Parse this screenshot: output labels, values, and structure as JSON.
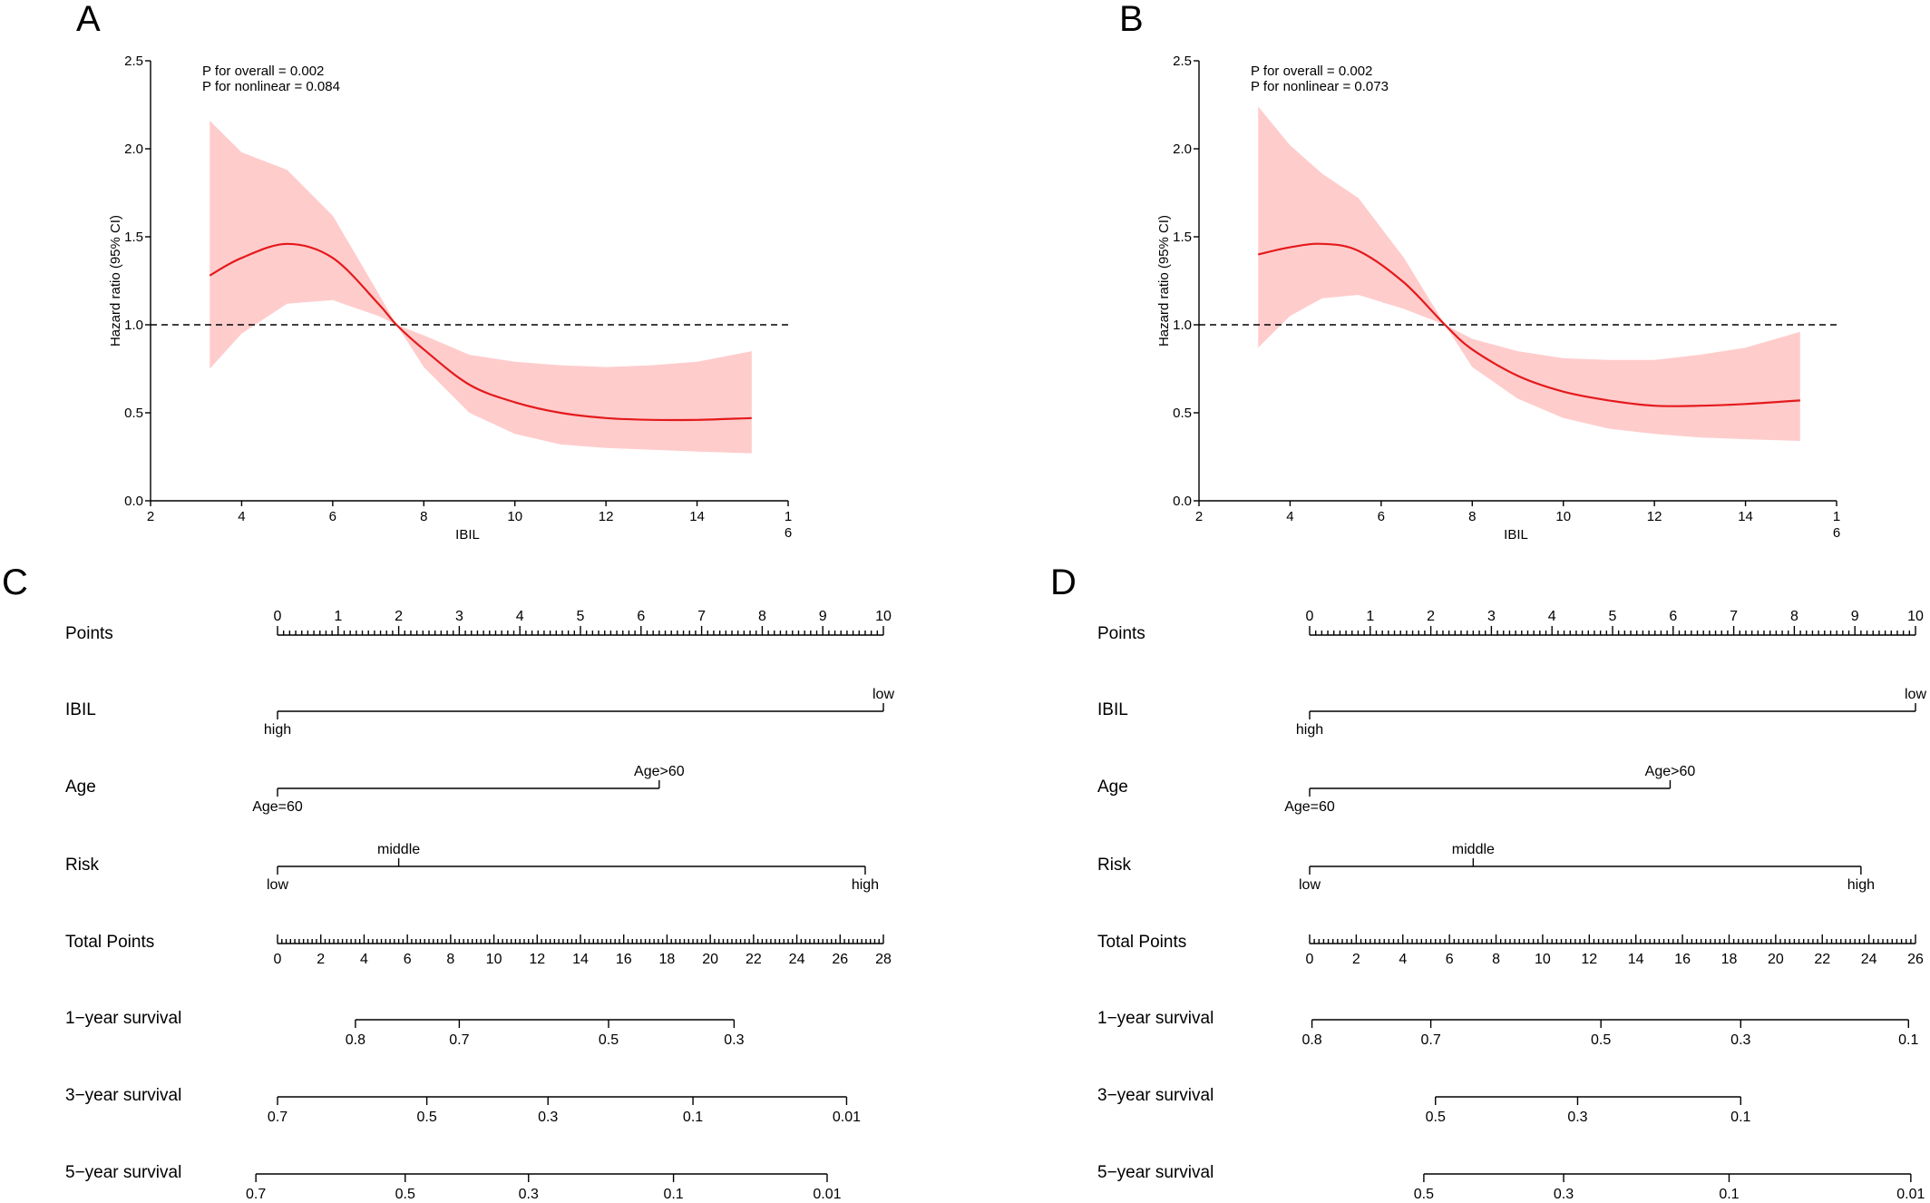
{
  "colors": {
    "curve": "#e41a1c",
    "ci_band": "#ffcccc",
    "axis": "#000000",
    "ref_line": "#000000"
  },
  "chart_data": [
    {
      "panel": "A",
      "type": "line",
      "xlabel": "IBIL",
      "ylabel": "Hazard ratio (95% CI)",
      "xlim": [
        2,
        16
      ],
      "ylim": [
        0,
        2.5
      ],
      "x_ticks": [
        "2",
        "4",
        "6",
        "8",
        "10",
        "12",
        "14",
        "1\n6"
      ],
      "y_ticks": [
        "0.0",
        "0.5",
        "1.0",
        "1.5",
        "2.0",
        "2.5"
      ],
      "annotations": [
        "P for overall = 0.002",
        "P for nonlinear = 0.084"
      ],
      "reference_line": 1.0,
      "x": [
        3.3,
        4.0,
        5.0,
        6.0,
        7.0,
        7.4,
        8.0,
        9.0,
        10.0,
        11.0,
        12.0,
        13.0,
        14.0,
        15.2
      ],
      "hr": [
        1.28,
        1.38,
        1.46,
        1.38,
        1.12,
        1.0,
        0.86,
        0.66,
        0.56,
        0.5,
        0.47,
        0.46,
        0.46,
        0.47
      ],
      "lower": [
        0.75,
        0.95,
        1.12,
        1.14,
        1.05,
        1.0,
        0.76,
        0.5,
        0.38,
        0.32,
        0.3,
        0.29,
        0.28,
        0.27
      ],
      "upper": [
        2.16,
        1.98,
        1.88,
        1.62,
        1.18,
        1.0,
        0.94,
        0.83,
        0.79,
        0.77,
        0.76,
        0.77,
        0.79,
        0.85
      ]
    },
    {
      "panel": "B",
      "type": "line",
      "xlabel": "IBIL",
      "ylabel": "Hazard ratio (95% CI)",
      "xlim": [
        2,
        16
      ],
      "ylim": [
        0,
        2.5
      ],
      "x_ticks": [
        "2",
        "4",
        "6",
        "8",
        "10",
        "12",
        "14",
        "1\n6"
      ],
      "y_ticks": [
        "0.0",
        "0.5",
        "1.0",
        "1.5",
        "2.0",
        "2.5"
      ],
      "annotations": [
        "P for overall = 0.002",
        "P for nonlinear = 0.073"
      ],
      "reference_line": 1.0,
      "x": [
        3.3,
        4.0,
        4.7,
        5.5,
        6.5,
        7.4,
        8.0,
        9.0,
        10.0,
        11.0,
        12.0,
        13.0,
        14.0,
        15.2
      ],
      "hr": [
        1.4,
        1.44,
        1.46,
        1.42,
        1.24,
        1.0,
        0.86,
        0.71,
        0.62,
        0.57,
        0.54,
        0.54,
        0.55,
        0.57
      ],
      "lower": [
        0.87,
        1.05,
        1.15,
        1.17,
        1.09,
        1.0,
        0.76,
        0.58,
        0.47,
        0.41,
        0.38,
        0.36,
        0.35,
        0.34
      ],
      "upper": [
        2.24,
        2.02,
        1.86,
        1.72,
        1.38,
        1.0,
        0.92,
        0.85,
        0.81,
        0.8,
        0.8,
        0.83,
        0.87,
        0.96
      ]
    },
    {
      "panel": "C",
      "type": "nomogram",
      "rows": [
        {
          "label": "Points",
          "kind": "points",
          "scale": [
            0,
            10
          ],
          "ticks": [
            "0",
            "1",
            "2",
            "3",
            "4",
            "5",
            "6",
            "7",
            "8",
            "9",
            "10"
          ]
        },
        {
          "label": "IBIL",
          "kind": "var",
          "levels": [
            {
              "text": "high",
              "points": 0,
              "pos": "below"
            },
            {
              "text": "low",
              "points": 10,
              "pos": "above"
            }
          ]
        },
        {
          "label": "Age",
          "kind": "var",
          "levels": [
            {
              "text": "Age=60",
              "points": 0,
              "pos": "below"
            },
            {
              "text": "Age>60",
              "points": 6.3,
              "pos": "above"
            }
          ]
        },
        {
          "label": "Risk",
          "kind": "var",
          "levels": [
            {
              "text": "low",
              "points": 0,
              "pos": "below"
            },
            {
              "text": "middle",
              "points": 2.0,
              "pos": "above"
            },
            {
              "text": "high",
              "points": 9.7,
              "pos": "below"
            }
          ]
        },
        {
          "label": "Total Points",
          "kind": "total",
          "scale": [
            0,
            28
          ],
          "ticks": [
            "0",
            "2",
            "4",
            "6",
            "8",
            "10",
            "12",
            "14",
            "16",
            "18",
            "20",
            "22",
            "24",
            "26",
            "28"
          ]
        },
        {
          "label": "1−year survival",
          "kind": "surv",
          "ticks": [
            {
              "text": "0.8",
              "total": 3.6
            },
            {
              "text": "0.7",
              "total": 8.4
            },
            {
              "text": "0.5",
              "total": 15.3
            },
            {
              "text": "0.3",
              "total": 21.1
            }
          ]
        },
        {
          "label": "3−year survival",
          "kind": "surv",
          "ticks": [
            {
              "text": "0.7",
              "total": 0
            },
            {
              "text": "0.5",
              "total": 6.9
            },
            {
              "text": "0.3",
              "total": 12.5
            },
            {
              "text": "0.1",
              "total": 19.2
            },
            {
              "text": "0.01",
              "total": 26.3
            }
          ]
        },
        {
          "label": "5−year survival",
          "kind": "surv",
          "ticks": [
            {
              "text": "0.7",
              "total": -1.0
            },
            {
              "text": "0.5",
              "total": 5.9
            },
            {
              "text": "0.3",
              "total": 11.6
            },
            {
              "text": "0.1",
              "total": 18.3
            },
            {
              "text": "0.01",
              "total": 25.4
            }
          ]
        }
      ]
    },
    {
      "panel": "D",
      "type": "nomogram",
      "rows": [
        {
          "label": "Points",
          "kind": "points",
          "scale": [
            0,
            10
          ],
          "ticks": [
            "0",
            "1",
            "2",
            "3",
            "4",
            "5",
            "6",
            "7",
            "8",
            "9",
            "10"
          ]
        },
        {
          "label": "IBIL",
          "kind": "var",
          "levels": [
            {
              "text": "high",
              "points": 0,
              "pos": "below"
            },
            {
              "text": "low",
              "points": 10,
              "pos": "above"
            }
          ]
        },
        {
          "label": "Age",
          "kind": "var",
          "levels": [
            {
              "text": "Age=60",
              "points": 0,
              "pos": "below"
            },
            {
              "text": "Age>60",
              "points": 5.95,
              "pos": "above"
            }
          ]
        },
        {
          "label": "Risk",
          "kind": "var",
          "levels": [
            {
              "text": "low",
              "points": 0,
              "pos": "below"
            },
            {
              "text": "middle",
              "points": 2.7,
              "pos": "above"
            },
            {
              "text": "high",
              "points": 9.1,
              "pos": "below"
            }
          ]
        },
        {
          "label": "Total Points",
          "kind": "total",
          "scale": [
            0,
            26
          ],
          "ticks": [
            "0",
            "2",
            "4",
            "6",
            "8",
            "10",
            "12",
            "14",
            "16",
            "18",
            "20",
            "22",
            "24",
            "26"
          ]
        },
        {
          "label": "1−year survival",
          "kind": "surv",
          "ticks": [
            {
              "text": "0.8",
              "total": 0.1
            },
            {
              "text": "0.7",
              "total": 5.2
            },
            {
              "text": "0.5",
              "total": 12.5
            },
            {
              "text": "0.3",
              "total": 18.5
            },
            {
              "text": "0.1",
              "total": 25.7
            }
          ]
        },
        {
          "label": "3−year survival",
          "kind": "surv",
          "ticks": [
            {
              "text": "0.5",
              "total": 5.4
            },
            {
              "text": "0.3",
              "total": 11.5
            },
            {
              "text": "0.1",
              "total": 18.5
            }
          ]
        },
        {
          "label": "5−year survival",
          "kind": "surv",
          "ticks": [
            {
              "text": "0.5",
              "total": 4.9
            },
            {
              "text": "0.3",
              "total": 10.9
            },
            {
              "text": "0.1",
              "total": 18.0
            },
            {
              "text": "0.01",
              "total": 25.8
            }
          ]
        }
      ]
    }
  ]
}
